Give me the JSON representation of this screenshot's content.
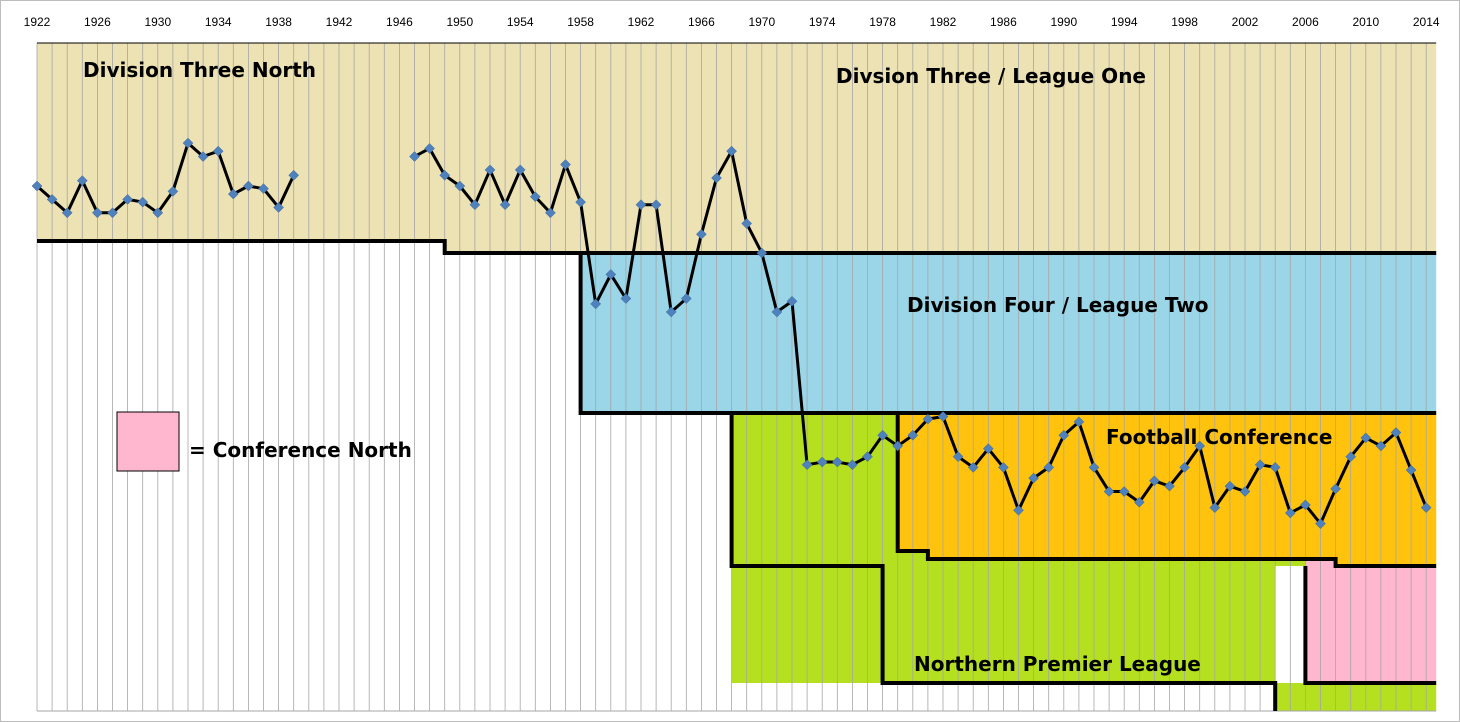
{
  "chart_data": {
    "type": "line",
    "title": "",
    "xlabel": "",
    "ylabel": "",
    "grid": true,
    "year_ticks": [
      "1922",
      "1926",
      "1930",
      "1934",
      "1938",
      "1942",
      "1946",
      "1950",
      "1954",
      "1958",
      "1962",
      "1966",
      "1970",
      "1974",
      "1978",
      "1982",
      "1986",
      "1990",
      "1994",
      "1998",
      "2002",
      "2006",
      "2010",
      "2014"
    ],
    "colors": {
      "division_three": "#EDE2B4",
      "division_four": "#9AD5E8",
      "northern_premier": "#B4E020",
      "football_conference": "#FFC30E",
      "conference_north": "#FFB6CF",
      "series_line": "#000000",
      "series_marker": "#4F81BD",
      "gridline": "#A6A6A6"
    },
    "regions": [
      {
        "name": "division_three",
        "label": "Division Three North"
      },
      {
        "name": "division_three_league_one",
        "label": "Divsion Three / League One"
      },
      {
        "name": "division_four",
        "label": "Division Four / League Two"
      },
      {
        "name": "football_conference",
        "label": "Football Conference"
      },
      {
        "name": "northern_premier",
        "label": "Northern Premier League"
      }
    ],
    "legend": {
      "label": "= Conference North",
      "placement": "middle-left"
    },
    "series": [
      {
        "values": [
          [
            1922,
            5.3
          ],
          [
            1923,
            5.8
          ],
          [
            1924,
            6.3
          ],
          [
            1925,
            5.1
          ],
          [
            1926,
            6.3
          ],
          [
            1927,
            6.3
          ],
          [
            1928,
            5.8
          ],
          [
            1929,
            5.9
          ],
          [
            1930,
            6.3
          ],
          [
            1931,
            5.5
          ],
          [
            1932,
            3.7
          ],
          [
            1933,
            4.2
          ],
          [
            1934,
            4.0
          ],
          [
            1935,
            5.6
          ],
          [
            1936,
            5.3
          ],
          [
            1937,
            5.4
          ],
          [
            1938,
            6.1
          ],
          [
            1939,
            4.9
          ],
          [
            1947,
            4.2
          ],
          [
            1948,
            3.9
          ],
          [
            1949,
            4.9
          ],
          [
            1950,
            5.3
          ],
          [
            1951,
            6.0
          ],
          [
            1952,
            4.7
          ],
          [
            1953,
            6.0
          ],
          [
            1954,
            4.7
          ],
          [
            1955,
            5.7
          ],
          [
            1956,
            6.3
          ],
          [
            1957,
            4.5
          ],
          [
            1958,
            5.9
          ],
          [
            1959,
            9.7
          ],
          [
            1960,
            8.6
          ],
          [
            1961,
            9.5
          ],
          [
            1962,
            6.0
          ],
          [
            1963,
            6.0
          ],
          [
            1964,
            10.0
          ],
          [
            1965,
            9.5
          ],
          [
            1966,
            7.1
          ],
          [
            1967,
            5.0
          ],
          [
            1968,
            4.0
          ],
          [
            1969,
            6.7
          ],
          [
            1970,
            7.8
          ],
          [
            1971,
            10.0
          ],
          [
            1972,
            9.6
          ],
          [
            1973,
            15.7
          ],
          [
            1974,
            15.6
          ],
          [
            1975,
            15.6
          ],
          [
            1976,
            15.7
          ],
          [
            1977,
            15.4
          ],
          [
            1978,
            14.6
          ],
          [
            1979,
            15.0
          ],
          [
            1980,
            14.6
          ],
          [
            1981,
            14.0
          ],
          [
            1982,
            13.9
          ],
          [
            1983,
            15.4
          ],
          [
            1984,
            15.8
          ],
          [
            1985,
            15.1
          ],
          [
            1986,
            15.8
          ],
          [
            1987,
            17.4
          ],
          [
            1988,
            16.2
          ],
          [
            1989,
            15.8
          ],
          [
            1990,
            14.6
          ],
          [
            1991,
            14.1
          ],
          [
            1992,
            15.8
          ],
          [
            1993,
            16.7
          ],
          [
            1994,
            16.7
          ],
          [
            1995,
            17.1
          ],
          [
            1996,
            16.3
          ],
          [
            1997,
            16.5
          ],
          [
            1998,
            15.8
          ],
          [
            1999,
            15.0
          ],
          [
            2000,
            17.3
          ],
          [
            2001,
            16.5
          ],
          [
            2002,
            16.7
          ],
          [
            2003,
            15.7
          ],
          [
            2004,
            15.8
          ],
          [
            2005,
            17.5
          ],
          [
            2006,
            17.2
          ],
          [
            2007,
            17.9
          ],
          [
            2008,
            16.6
          ],
          [
            2009,
            15.4
          ],
          [
            2010,
            14.7
          ],
          [
            2011,
            15.0
          ],
          [
            2012,
            14.5
          ],
          [
            2013,
            15.9
          ],
          [
            2014,
            17.3
          ]
        ]
      }
    ]
  }
}
